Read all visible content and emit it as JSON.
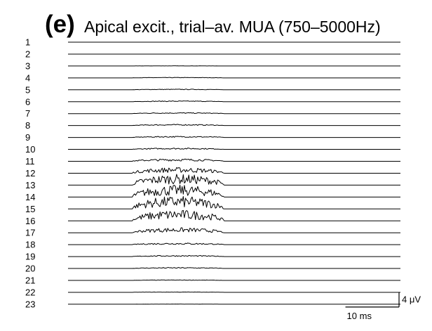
{
  "panel_label": "(e)",
  "title": "Apical excit., trial–av. MUA (750–5000Hz)",
  "scale_bars": {
    "voltage_label": "4 μV",
    "voltage_value_uV": 4,
    "time_label": "10 ms",
    "time_value_ms": 10
  },
  "chart_data": {
    "type": "line",
    "title": "Apical excit., trial–av. MUA (750–5000Hz)",
    "xlabel": "",
    "ylabel": "",
    "grid": false,
    "legend": "none",
    "x_unit": "ms",
    "y_unit": "μV",
    "x_range_ms": [
      0,
      62
    ],
    "response_window_ms": [
      12,
      29
    ],
    "series": [
      {
        "label": "1",
        "peak_uV": 0.0
      },
      {
        "label": "2",
        "peak_uV": 0.0
      },
      {
        "label": "3",
        "peak_uV": 0.05
      },
      {
        "label": "4",
        "peak_uV": 0.15
      },
      {
        "label": "5",
        "peak_uV": 0.2
      },
      {
        "label": "6",
        "peak_uV": 0.25
      },
      {
        "label": "7",
        "peak_uV": 0.3
      },
      {
        "label": "8",
        "peak_uV": 0.35
      },
      {
        "label": "9",
        "peak_uV": 0.35
      },
      {
        "label": "10",
        "peak_uV": 0.4
      },
      {
        "label": "11",
        "peak_uV": 0.7
      },
      {
        "label": "12",
        "peak_uV": 1.6
      },
      {
        "label": "13",
        "peak_uV": 3.0
      },
      {
        "label": "14",
        "peak_uV": 3.3
      },
      {
        "label": "15",
        "peak_uV": 3.5
      },
      {
        "label": "16",
        "peak_uV": 3.0
      },
      {
        "label": "17",
        "peak_uV": 1.4
      },
      {
        "label": "18",
        "peak_uV": 0.5
      },
      {
        "label": "19",
        "peak_uV": 0.35
      },
      {
        "label": "20",
        "peak_uV": 0.3
      },
      {
        "label": "21",
        "peak_uV": 0.15
      },
      {
        "label": "22",
        "peak_uV": 0.1
      },
      {
        "label": "23",
        "peak_uV": 0.05
      }
    ]
  }
}
